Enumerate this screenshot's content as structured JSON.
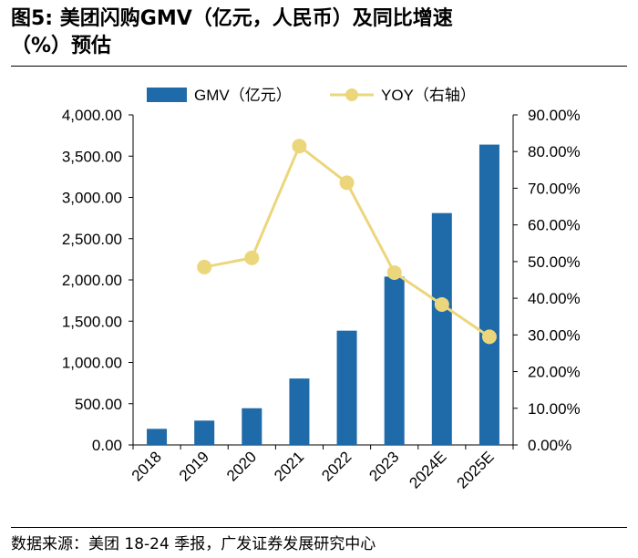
{
  "figure": {
    "title_line1": "图5: 美团闪购GMV（亿元，人民币）及同比增速",
    "title_line2": "（%）预估",
    "source": "数据来源：美团 18-24 季报，广发证券发展研究中心"
  },
  "chart_data": {
    "type": "bar+line",
    "categories": [
      "2018",
      "2019",
      "2020",
      "2021",
      "2022",
      "2023",
      "2024E",
      "2025E"
    ],
    "series": [
      {
        "name": "GMV（亿元）",
        "type": "bar",
        "axis": "left",
        "color": "#1f6aa8",
        "values": [
          195,
          295,
          445,
          805,
          1385,
          2040,
          2810,
          3640
        ]
      },
      {
        "name": "YOY（右轴）",
        "type": "line",
        "axis": "right",
        "color": "#ecd67c",
        "values": [
          null,
          48.5,
          51.0,
          81.5,
          71.5,
          47.0,
          38.3,
          29.5
        ]
      }
    ],
    "y_left": {
      "min": 0,
      "max": 4000,
      "step": 500,
      "tick_labels": [
        "0.00",
        "500.00",
        "1,000.00",
        "1,500.00",
        "2,000.00",
        "2,500.00",
        "3,000.00",
        "3,500.00",
        "4,000.00"
      ]
    },
    "y_right": {
      "min": 0,
      "max": 90,
      "step": 10,
      "tick_labels": [
        "0.00%",
        "10.00%",
        "20.00%",
        "30.00%",
        "40.00%",
        "50.00%",
        "60.00%",
        "70.00%",
        "80.00%",
        "90.00%"
      ]
    },
    "legend": [
      "GMV（亿元）",
      "YOY（右轴）"
    ],
    "legend_position": "top-center",
    "grid": false
  }
}
